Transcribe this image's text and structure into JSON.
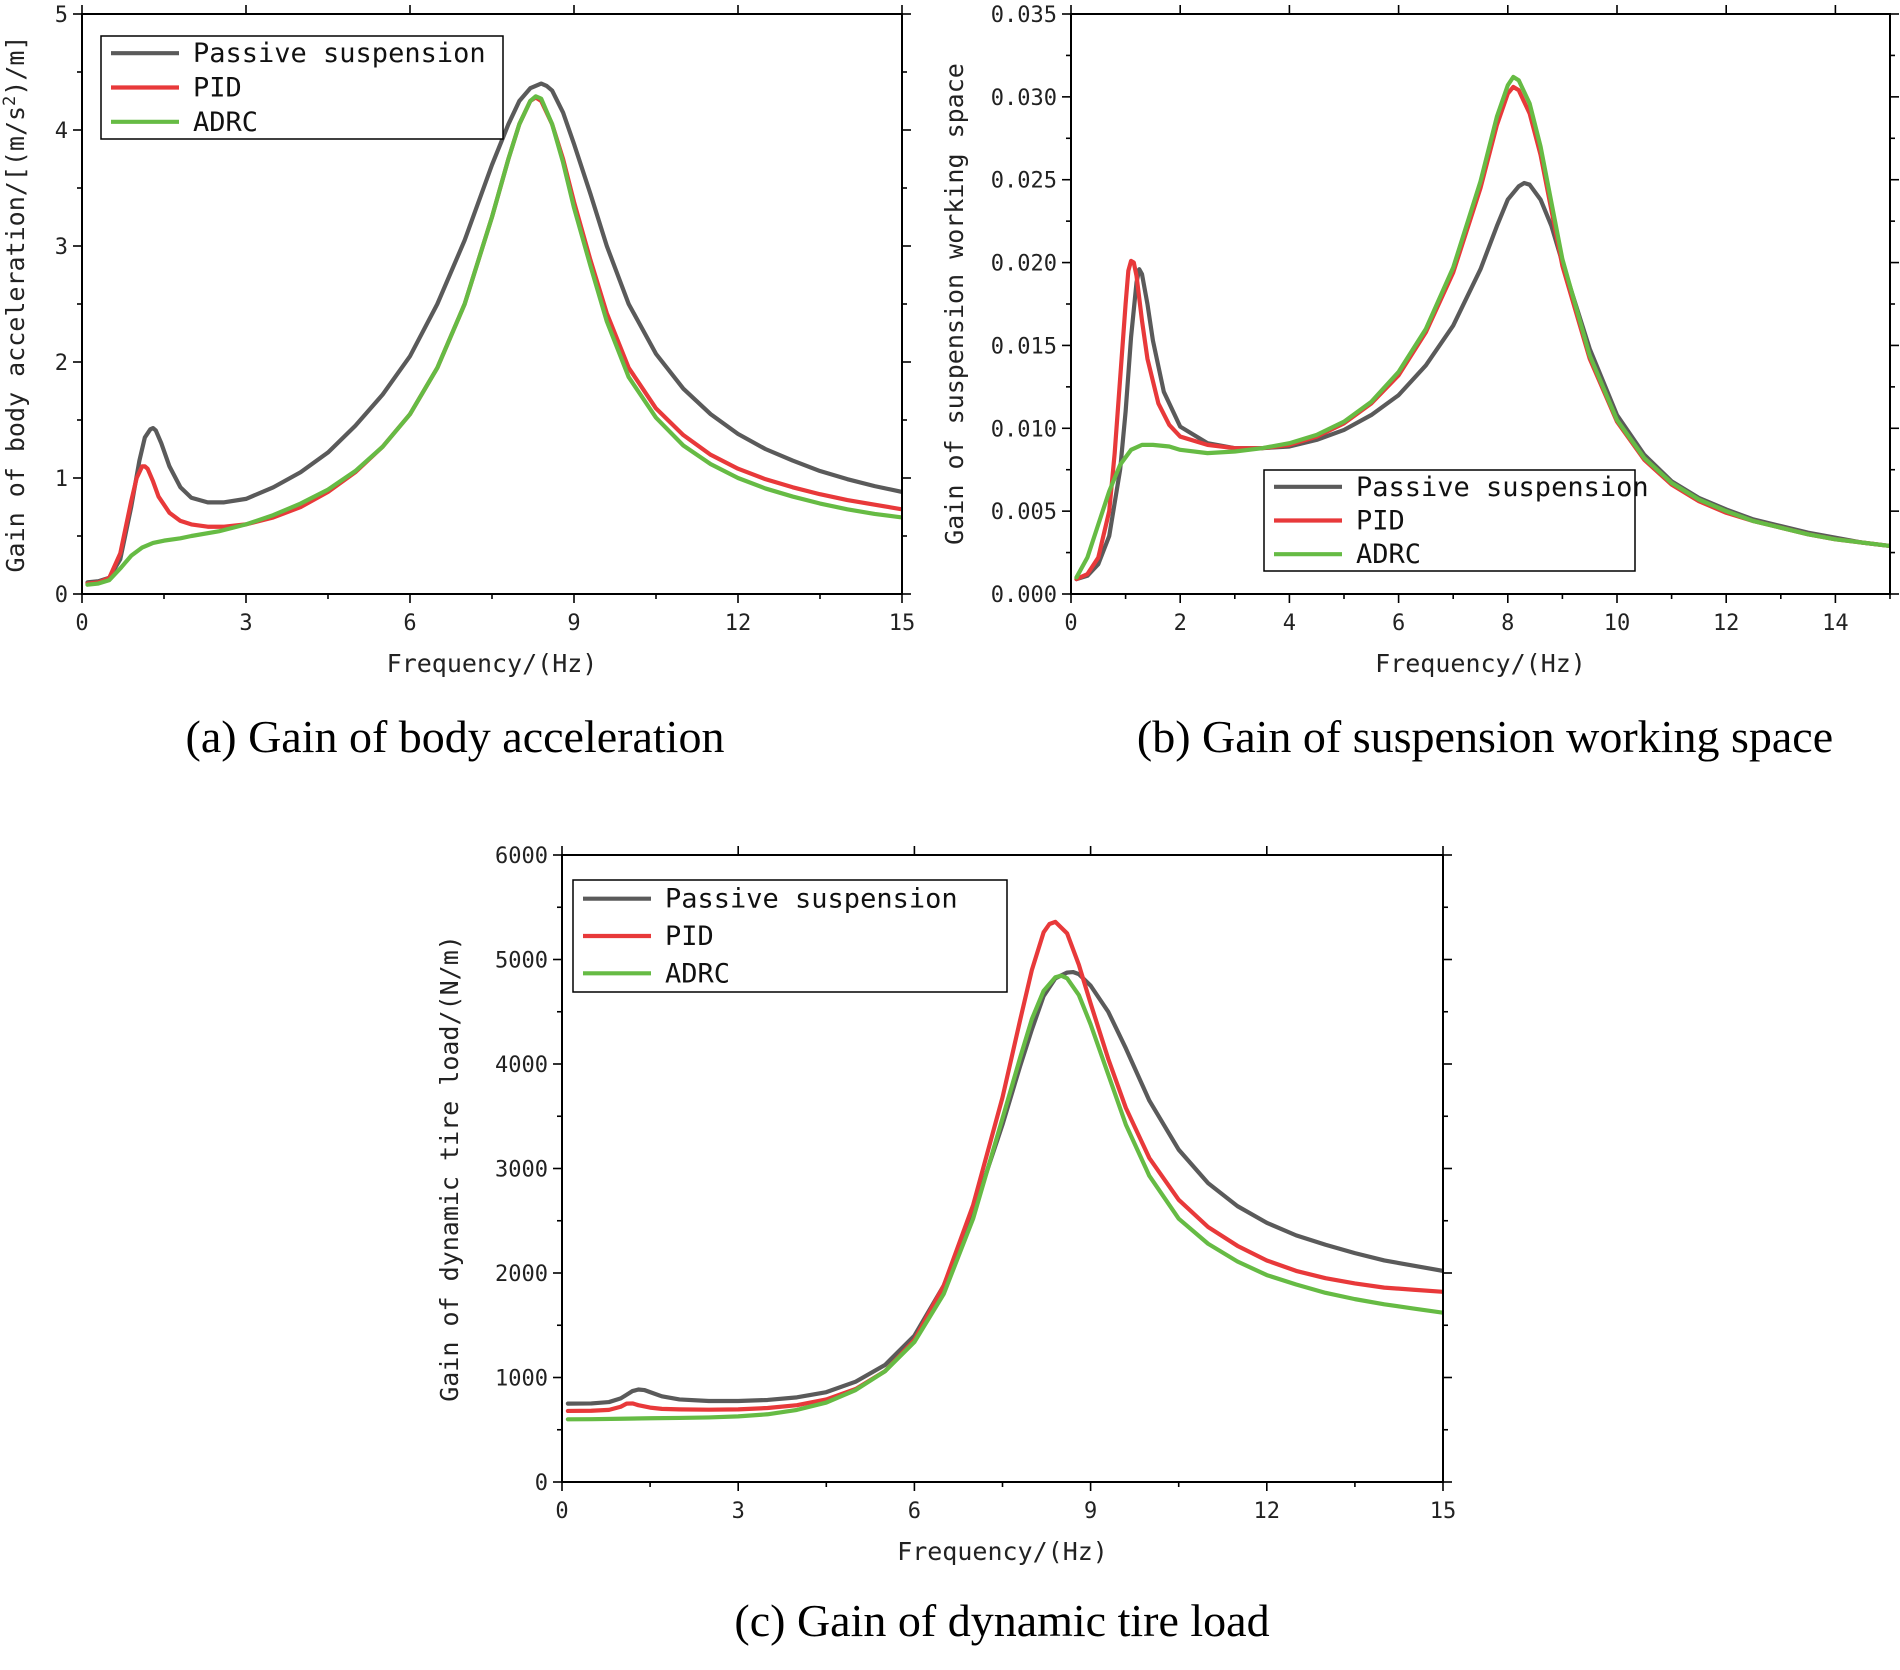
{
  "colors": {
    "passive": "#5a5a5a",
    "pid": "#e8393a",
    "adrc": "#66bb44"
  },
  "chart_data": [
    {
      "type": "line",
      "caption": "(a) Gain of body acceleration",
      "xlabel": "Frequency/(Hz)",
      "ylabel_parts": [
        "Gain of body acceleration/[(m/s",
        "2",
        ")/m]"
      ],
      "xlim": [
        0,
        15
      ],
      "ylim": [
        0,
        5
      ],
      "xticks": [
        0,
        3,
        6,
        9,
        12,
        15
      ],
      "xtick_labels": [
        "0",
        "3",
        "6",
        "9",
        "12",
        "15"
      ],
      "yticks": [
        0,
        1,
        2,
        3,
        4,
        5
      ],
      "ytick_labels": [
        "0",
        "1",
        "2",
        "3",
        "4",
        "5"
      ],
      "legend_position": "top-left",
      "series": [
        {
          "name": "Passive suspension",
          "color_key": "passive",
          "x": [
            0.1,
            0.3,
            0.5,
            0.7,
            0.9,
            1.05,
            1.15,
            1.25,
            1.3,
            1.35,
            1.45,
            1.6,
            1.8,
            2.0,
            2.3,
            2.6,
            3.0,
            3.5,
            4.0,
            4.5,
            5.0,
            5.5,
            6.0,
            6.5,
            7.0,
            7.5,
            7.8,
            8.0,
            8.2,
            8.4,
            8.5,
            8.6,
            8.8,
            9.0,
            9.3,
            9.6,
            10.0,
            10.5,
            11.0,
            11.5,
            12.0,
            12.5,
            13.0,
            13.5,
            14.0,
            14.5,
            15.0
          ],
          "y": [
            0.1,
            0.11,
            0.14,
            0.3,
            0.75,
            1.15,
            1.35,
            1.42,
            1.43,
            1.41,
            1.3,
            1.1,
            0.92,
            0.83,
            0.79,
            0.79,
            0.82,
            0.92,
            1.05,
            1.22,
            1.45,
            1.72,
            2.05,
            2.5,
            3.05,
            3.7,
            4.05,
            4.25,
            4.36,
            4.4,
            4.38,
            4.34,
            4.15,
            3.88,
            3.45,
            3.0,
            2.5,
            2.07,
            1.77,
            1.55,
            1.38,
            1.25,
            1.15,
            1.06,
            0.99,
            0.93,
            0.88
          ]
        },
        {
          "name": "PID",
          "color_key": "pid",
          "x": [
            0.1,
            0.3,
            0.5,
            0.7,
            0.9,
            1.0,
            1.1,
            1.15,
            1.2,
            1.3,
            1.4,
            1.6,
            1.8,
            2.0,
            2.3,
            2.6,
            3.0,
            3.5,
            4.0,
            4.5,
            5.0,
            5.5,
            6.0,
            6.5,
            7.0,
            7.5,
            7.8,
            8.0,
            8.2,
            8.3,
            8.4,
            8.6,
            8.8,
            9.0,
            9.3,
            9.6,
            10.0,
            10.5,
            11.0,
            11.5,
            12.0,
            12.5,
            13.0,
            13.5,
            14.0,
            14.5,
            15.0
          ],
          "y": [
            0.09,
            0.1,
            0.14,
            0.35,
            0.8,
            1.0,
            1.1,
            1.1,
            1.08,
            0.97,
            0.84,
            0.7,
            0.63,
            0.6,
            0.58,
            0.58,
            0.6,
            0.66,
            0.75,
            0.88,
            1.05,
            1.27,
            1.55,
            1.95,
            2.5,
            3.25,
            3.75,
            4.05,
            4.25,
            4.28,
            4.25,
            4.05,
            3.75,
            3.38,
            2.88,
            2.42,
            1.95,
            1.6,
            1.37,
            1.2,
            1.08,
            0.99,
            0.92,
            0.86,
            0.81,
            0.77,
            0.73
          ]
        },
        {
          "name": "ADRC",
          "color_key": "adrc",
          "x": [
            0.1,
            0.3,
            0.5,
            0.7,
            0.9,
            1.1,
            1.3,
            1.5,
            1.8,
            2.0,
            2.5,
            3.0,
            3.5,
            4.0,
            4.5,
            5.0,
            5.5,
            6.0,
            6.5,
            7.0,
            7.5,
            7.8,
            8.0,
            8.2,
            8.3,
            8.4,
            8.6,
            8.8,
            9.0,
            9.3,
            9.6,
            10.0,
            10.5,
            11.0,
            11.5,
            12.0,
            12.5,
            13.0,
            13.5,
            14.0,
            14.5,
            15.0
          ],
          "y": [
            0.08,
            0.09,
            0.12,
            0.22,
            0.33,
            0.4,
            0.44,
            0.46,
            0.48,
            0.5,
            0.54,
            0.6,
            0.68,
            0.78,
            0.9,
            1.06,
            1.27,
            1.55,
            1.95,
            2.5,
            3.25,
            3.75,
            4.05,
            4.25,
            4.29,
            4.27,
            4.05,
            3.72,
            3.33,
            2.83,
            2.35,
            1.87,
            1.52,
            1.28,
            1.12,
            1.0,
            0.91,
            0.84,
            0.78,
            0.73,
            0.69,
            0.66
          ]
        }
      ]
    },
    {
      "type": "line",
      "caption": "(b) Gain of suspension working space",
      "xlabel": "Frequency/(Hz)",
      "ylabel_parts": [
        "Gain of suspension working space",
        "",
        ""
      ],
      "xlim": [
        0,
        15
      ],
      "ylim": [
        0,
        0.035
      ],
      "xticks": [
        0,
        2,
        4,
        6,
        8,
        10,
        12,
        14
      ],
      "xtick_labels": [
        "0",
        "2",
        "4",
        "6",
        "8",
        "10",
        "12",
        "14"
      ],
      "yticks": [
        0,
        0.005,
        0.01,
        0.015,
        0.02,
        0.025,
        0.03,
        0.035
      ],
      "ytick_labels": [
        "0.000",
        "0.005",
        "0.010",
        "0.015",
        "0.020",
        "0.025",
        "0.030",
        "0.035"
      ],
      "legend_position": "bottom-center",
      "series": [
        {
          "name": "Passive suspension",
          "color_key": "passive",
          "x": [
            0.1,
            0.3,
            0.5,
            0.7,
            0.9,
            1.0,
            1.1,
            1.2,
            1.25,
            1.3,
            1.4,
            1.5,
            1.7,
            2.0,
            2.5,
            3.0,
            3.5,
            4.0,
            4.5,
            5.0,
            5.5,
            6.0,
            6.5,
            7.0,
            7.5,
            7.8,
            8.0,
            8.2,
            8.3,
            8.4,
            8.6,
            8.8,
            9.0,
            9.5,
            10.0,
            10.5,
            11.0,
            11.5,
            12.0,
            12.5,
            13.0,
            13.5,
            14.0,
            14.5,
            15.0
          ],
          "y": [
            0.0009,
            0.0011,
            0.0018,
            0.0035,
            0.0075,
            0.011,
            0.0155,
            0.0188,
            0.0196,
            0.0193,
            0.0175,
            0.0153,
            0.0122,
            0.0101,
            0.0091,
            0.0088,
            0.0088,
            0.0089,
            0.0093,
            0.0099,
            0.0108,
            0.012,
            0.0138,
            0.0162,
            0.0196,
            0.0222,
            0.0238,
            0.0246,
            0.0248,
            0.0247,
            0.0238,
            0.0222,
            0.02,
            0.0148,
            0.0108,
            0.0084,
            0.0068,
            0.0058,
            0.0051,
            0.0045,
            0.0041,
            0.0037,
            0.0034,
            0.0031,
            0.0029
          ]
        },
        {
          "name": "PID",
          "color_key": "pid",
          "x": [
            0.1,
            0.3,
            0.5,
            0.7,
            0.8,
            0.9,
            1.0,
            1.05,
            1.1,
            1.15,
            1.2,
            1.3,
            1.4,
            1.6,
            1.8,
            2.0,
            2.5,
            3.0,
            3.5,
            4.0,
            4.5,
            5.0,
            5.5,
            6.0,
            6.5,
            7.0,
            7.5,
            7.8,
            8.0,
            8.1,
            8.2,
            8.4,
            8.6,
            9.0,
            9.5,
            10.0,
            10.5,
            11.0,
            11.5,
            12.0,
            12.5,
            13.0,
            13.5,
            14.0,
            14.5,
            15.0
          ],
          "y": [
            0.0009,
            0.0012,
            0.0022,
            0.005,
            0.0085,
            0.013,
            0.0175,
            0.0195,
            0.0201,
            0.02,
            0.0192,
            0.0165,
            0.0142,
            0.0115,
            0.0102,
            0.0095,
            0.009,
            0.0088,
            0.0088,
            0.009,
            0.0095,
            0.0103,
            0.0115,
            0.0132,
            0.0158,
            0.0194,
            0.0245,
            0.0283,
            0.0302,
            0.0306,
            0.0304,
            0.029,
            0.0265,
            0.0198,
            0.0142,
            0.0104,
            0.0081,
            0.0066,
            0.0056,
            0.0049,
            0.0044,
            0.004,
            0.0036,
            0.0033,
            0.0031,
            0.0029
          ]
        },
        {
          "name": "ADRC",
          "color_key": "adrc",
          "x": [
            0.1,
            0.3,
            0.5,
            0.7,
            0.9,
            1.1,
            1.3,
            1.5,
            1.8,
            2.0,
            2.5,
            3.0,
            3.5,
            4.0,
            4.5,
            5.0,
            5.5,
            6.0,
            6.5,
            7.0,
            7.5,
            7.8,
            8.0,
            8.1,
            8.2,
            8.4,
            8.6,
            9.0,
            9.5,
            10.0,
            10.5,
            11.0,
            11.5,
            12.0,
            12.5,
            13.0,
            13.5,
            14.0,
            14.5,
            15.0
          ],
          "y": [
            0.001,
            0.0022,
            0.0042,
            0.0062,
            0.0078,
            0.0087,
            0.009,
            0.009,
            0.0089,
            0.0087,
            0.0085,
            0.0086,
            0.0088,
            0.0091,
            0.0096,
            0.0104,
            0.0116,
            0.0134,
            0.016,
            0.0197,
            0.0249,
            0.0288,
            0.0307,
            0.0312,
            0.031,
            0.0296,
            0.027,
            0.0202,
            0.0144,
            0.0105,
            0.0082,
            0.0067,
            0.0057,
            0.005,
            0.0044,
            0.004,
            0.0036,
            0.0033,
            0.0031,
            0.0029
          ]
        }
      ]
    },
    {
      "type": "line",
      "caption": "(c) Gain of dynamic tire load",
      "xlabel": "Frequency/(Hz)",
      "ylabel_parts": [
        "Gain of dynamic tire load/(N/m)",
        "",
        ""
      ],
      "xlim": [
        0,
        15
      ],
      "ylim": [
        0,
        6000
      ],
      "xticks": [
        0,
        3,
        6,
        9,
        12,
        15
      ],
      "xtick_labels": [
        "0",
        "3",
        "6",
        "9",
        "12",
        "15"
      ],
      "yticks": [
        0,
        1000,
        2000,
        3000,
        4000,
        5000,
        6000
      ],
      "ytick_labels": [
        "0",
        "1000",
        "2000",
        "3000",
        "4000",
        "5000",
        "6000"
      ],
      "legend_position": "top-left",
      "series": [
        {
          "name": "Passive suspension",
          "color_key": "passive",
          "x": [
            0.1,
            0.5,
            0.8,
            1.0,
            1.1,
            1.2,
            1.3,
            1.4,
            1.5,
            1.7,
            2.0,
            2.5,
            3.0,
            3.5,
            4.0,
            4.5,
            5.0,
            5.5,
            6.0,
            6.5,
            7.0,
            7.5,
            7.8,
            8.0,
            8.2,
            8.4,
            8.6,
            8.7,
            8.8,
            9.0,
            9.3,
            9.6,
            10.0,
            10.5,
            11.0,
            11.5,
            12.0,
            12.5,
            13.0,
            13.5,
            14.0,
            14.5,
            15.0
          ],
          "y": [
            750,
            752,
            765,
            800,
            835,
            870,
            885,
            880,
            860,
            820,
            790,
            775,
            775,
            785,
            810,
            860,
            960,
            1120,
            1400,
            1880,
            2580,
            3420,
            3980,
            4330,
            4650,
            4820,
            4875,
            4880,
            4860,
            4750,
            4500,
            4150,
            3650,
            3180,
            2860,
            2640,
            2480,
            2360,
            2270,
            2190,
            2120,
            2070,
            2020
          ]
        },
        {
          "name": "PID",
          "color_key": "pid",
          "x": [
            0.1,
            0.5,
            0.8,
            1.0,
            1.1,
            1.2,
            1.3,
            1.5,
            1.7,
            2.0,
            2.5,
            3.0,
            3.5,
            4.0,
            4.5,
            5.0,
            5.5,
            6.0,
            6.5,
            7.0,
            7.5,
            7.8,
            8.0,
            8.2,
            8.3,
            8.4,
            8.6,
            8.8,
            9.0,
            9.3,
            9.6,
            10.0,
            10.5,
            11.0,
            11.5,
            12.0,
            12.5,
            13.0,
            13.5,
            14.0,
            14.5,
            15.0
          ],
          "y": [
            680,
            682,
            690,
            720,
            750,
            752,
            735,
            712,
            700,
            695,
            692,
            695,
            708,
            735,
            790,
            890,
            1060,
            1360,
            1880,
            2650,
            3680,
            4420,
            4900,
            5260,
            5340,
            5360,
            5250,
            4950,
            4580,
            4050,
            3580,
            3100,
            2700,
            2440,
            2260,
            2120,
            2020,
            1950,
            1900,
            1860,
            1840,
            1820
          ]
        },
        {
          "name": "ADRC",
          "color_key": "adrc",
          "x": [
            0.1,
            0.5,
            1.0,
            1.5,
            2.0,
            2.5,
            3.0,
            3.5,
            4.0,
            4.5,
            5.0,
            5.5,
            6.0,
            6.5,
            7.0,
            7.5,
            7.8,
            8.0,
            8.2,
            8.4,
            8.5,
            8.6,
            8.8,
            9.0,
            9.3,
            9.6,
            10.0,
            10.5,
            11.0,
            11.5,
            12.0,
            12.5,
            13.0,
            13.5,
            14.0,
            14.5,
            15.0
          ],
          "y": [
            600,
            601,
            605,
            610,
            613,
            618,
            628,
            648,
            690,
            760,
            880,
            1060,
            1340,
            1800,
            2520,
            3480,
            4060,
            4430,
            4700,
            4830,
            4845,
            4820,
            4660,
            4380,
            3900,
            3420,
            2930,
            2520,
            2280,
            2110,
            1980,
            1890,
            1810,
            1750,
            1700,
            1660,
            1620
          ]
        }
      ]
    }
  ]
}
